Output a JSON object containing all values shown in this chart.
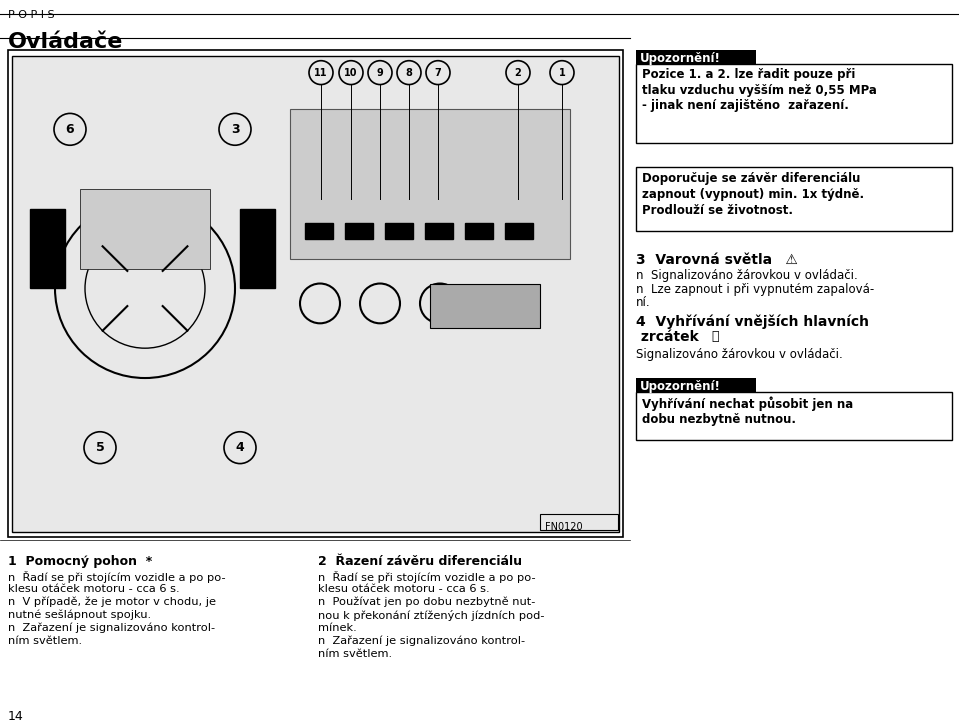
{
  "page_header": "P O P I S",
  "page_title": "Ovládače",
  "page_number": "14",
  "bg_color": "#ffffff",
  "text_color": "#000000",
  "section1_title": "1  Pomocný pohon  *",
  "section1_lines": [
    "n  Řadí se při stojícím vozidle a po po-",
    "klesu otáček motoru - cca 6 s.",
    "n  V případě, že je motor v chodu, je",
    "nutné sešlápnout spojku.",
    "n  Zařazení je signalizováno kontrol-",
    "ním světlem."
  ],
  "section2_title": "2  Řazení závěru diferenciálu",
  "section2_lines": [
    "n  Řadí se při stojícím vozidle a po po-",
    "klesu otáček motoru - cca 6 s.",
    "n  Používat jen po dobu nezbytně nut-",
    "nou k překonání ztížených jízdních pod-",
    "mínek.",
    "n  Zařazení je signalizováno kontrol-",
    "ním světlem."
  ],
  "warn1_header": "Upozornění!",
  "warn1_lines": [
    "Pozice 1. a 2. lze řadit pouze při",
    "tlaku vzduchu vyšším než 0,55 MPa",
    "- jinak není zajištěno  zařazení."
  ],
  "note1_lines": [
    "Doporučuje se závěr diferenciálu",
    "zapnout (vypnout) min. 1x týdně.",
    "Prodlouží se životnost."
  ],
  "section3_title": "3  Varovná světla",
  "section3_lines": [
    "n  Signalizováno žárovkou v ovládači.",
    "n  Lze zapnout i při vypnutém zapalová-",
    "ní."
  ],
  "section4_title": "4  Vyhřívání vnějších hlavních",
  "section4_title2": " zrcátek",
  "section4_lines": [
    "Signalizováno žárovkou v ovládači."
  ],
  "warn2_header": "Upozornění!",
  "warn2_lines": [
    "Vyhřívání nechat působit jen na",
    "dobu nezbytně nutnou."
  ]
}
